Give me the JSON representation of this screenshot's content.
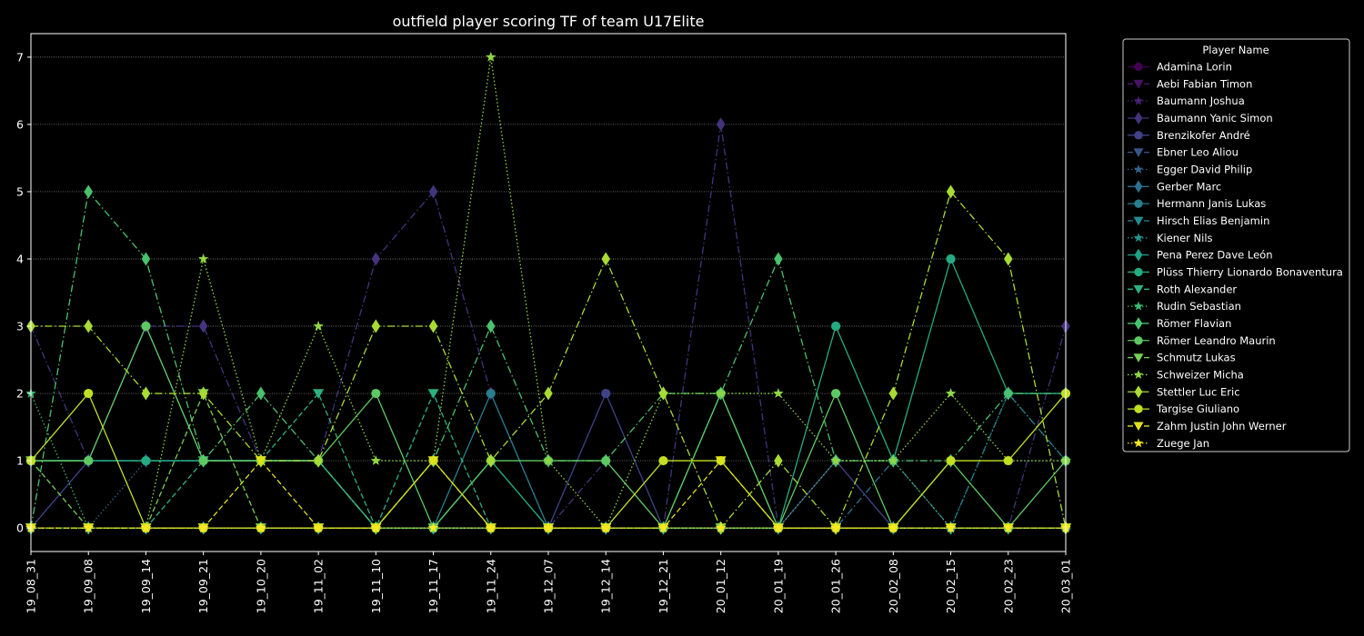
{
  "chart_data": {
    "type": "line",
    "title": "outfield player scoring TF of team U17Elite",
    "xlabel": "",
    "ylabel": "",
    "categories": [
      "19_08_31",
      "19_09_08",
      "19_09_14",
      "19_09_21",
      "19_10_20",
      "19_11_02",
      "19_11_10",
      "19_11_17",
      "19_11_24",
      "19_12_07",
      "19_12_14",
      "19_12_21",
      "20_01_12",
      "20_01_19",
      "20_01_26",
      "20_02_08",
      "20_02_15",
      "20_02_23",
      "20_03_01"
    ],
    "ylim": [
      -0.35,
      7.35
    ],
    "yticks": [
      0,
      1,
      2,
      3,
      4,
      5,
      6,
      7
    ],
    "grid": "horizontal-dotted",
    "legend": {
      "title": "Player Name",
      "placement": "outside-right"
    },
    "series": [
      {
        "name": "Adamina Lorin",
        "color": "#440154",
        "marker": "circle",
        "dash": "solid",
        "values": [
          0,
          0,
          0,
          0,
          0,
          0,
          0,
          0,
          0,
          0,
          0,
          0,
          0,
          0,
          0,
          0,
          0,
          0,
          0
        ]
      },
      {
        "name": "Aebi Fabian Timon",
        "color": "#471365",
        "marker": "triangle-down",
        "dash": "dashed",
        "values": [
          0,
          0,
          0,
          0,
          0,
          0,
          0,
          0,
          0,
          0,
          0,
          0,
          0,
          0,
          0,
          0,
          0,
          0,
          0
        ]
      },
      {
        "name": "Baumann Joshua",
        "color": "#482475",
        "marker": "star",
        "dash": "dotted",
        "values": [
          0,
          0,
          0,
          0,
          0,
          0,
          0,
          0,
          0,
          0,
          0,
          0,
          0,
          0,
          0,
          0,
          0,
          0,
          0
        ]
      },
      {
        "name": "Baumann Yanic Simon",
        "color": "#45337d",
        "marker": "diamond",
        "dash": "dashdot",
        "values": [
          3,
          1,
          3,
          3,
          1,
          1,
          4,
          5,
          2,
          0,
          1,
          0,
          6,
          0,
          0,
          0,
          0,
          0,
          3
        ]
      },
      {
        "name": "Brenzikofer André",
        "color": "#404387",
        "marker": "circle",
        "dash": "solid",
        "values": [
          0,
          1,
          3,
          1,
          1,
          1,
          0,
          0,
          0,
          0,
          2,
          0,
          0,
          0,
          1,
          0,
          0,
          0,
          0
        ]
      },
      {
        "name": "Ebner Leo Aliou",
        "color": "#39558c",
        "marker": "triangle-down",
        "dash": "dashed",
        "values": [
          0,
          0,
          0,
          0,
          0,
          0,
          0,
          0,
          0,
          0,
          0,
          0,
          0,
          0,
          0,
          0,
          0,
          0,
          0
        ]
      },
      {
        "name": "Egger David Philip",
        "color": "#33638d",
        "marker": "star",
        "dash": "dotted",
        "values": [
          0,
          0,
          1,
          1,
          1,
          1,
          0,
          0,
          0,
          0,
          0,
          0,
          0,
          0,
          0,
          0,
          0,
          0,
          0
        ]
      },
      {
        "name": "Gerber Marc",
        "color": "#2d708e",
        "marker": "diamond",
        "dash": "dashdot",
        "values": [
          1,
          1,
          1,
          1,
          1,
          1,
          0,
          0,
          1,
          0,
          0,
          0,
          0,
          0,
          0,
          1,
          0,
          2,
          1
        ]
      },
      {
        "name": "Hermann Janis Lukas",
        "color": "#287d8e",
        "marker": "circle",
        "dash": "solid",
        "values": [
          1,
          1,
          1,
          1,
          1,
          1,
          0,
          0,
          2,
          0,
          0,
          0,
          0,
          0,
          0,
          0,
          0,
          0,
          0
        ]
      },
      {
        "name": "Hirsch Elias Benjamin",
        "color": "#238a8d",
        "marker": "triangle-down",
        "dash": "dashed",
        "values": [
          0,
          0,
          0,
          0,
          0,
          0,
          0,
          0,
          0,
          0,
          0,
          0,
          0,
          0,
          0,
          0,
          0,
          0,
          0
        ]
      },
      {
        "name": "Kiener Nils",
        "color": "#1f968b",
        "marker": "star",
        "dash": "dotted",
        "values": [
          0,
          0,
          0,
          0,
          0,
          0,
          0,
          0,
          0,
          0,
          0,
          0,
          0,
          0,
          0,
          0,
          0,
          2,
          1
        ]
      },
      {
        "name": "Pena Perez Dave León",
        "color": "#1fa188",
        "marker": "diamond",
        "dash": "dashdot",
        "values": [
          0,
          0,
          0,
          0,
          0,
          0,
          0,
          0,
          0,
          0,
          0,
          0,
          0,
          0,
          0,
          0,
          0,
          0,
          0
        ]
      },
      {
        "name": "Plüss Thierry Lionardo Bonaventura",
        "color": "#25ab82",
        "marker": "circle",
        "dash": "solid",
        "values": [
          1,
          1,
          1,
          1,
          1,
          1,
          0,
          0,
          1,
          0,
          0,
          0,
          2,
          0,
          3,
          1,
          4,
          2,
          2
        ]
      },
      {
        "name": "Roth Alexander",
        "color": "#2cb17e",
        "marker": "triangle-down",
        "dash": "dashed",
        "values": [
          0,
          0,
          0,
          1,
          1,
          2,
          0,
          2,
          0,
          0,
          0,
          0,
          0,
          0,
          0,
          0,
          0,
          0,
          0
        ]
      },
      {
        "name": "Rudin Sebastian",
        "color": "#3bbb75",
        "marker": "star",
        "dash": "dotted",
        "values": [
          2,
          0,
          0,
          0,
          0,
          0,
          0,
          0,
          0,
          0,
          0,
          0,
          0,
          0,
          1,
          1,
          0,
          0,
          0
        ]
      },
      {
        "name": "Römer Flavian",
        "color": "#4ac16d",
        "marker": "diamond",
        "dash": "dashdot",
        "values": [
          0,
          5,
          4,
          1,
          2,
          1,
          0,
          1,
          3,
          1,
          1,
          2,
          2,
          4,
          1,
          1,
          1,
          2,
          2
        ]
      },
      {
        "name": "Römer Leandro Maurin",
        "color": "#5ec962",
        "marker": "circle",
        "dash": "solid",
        "values": [
          1,
          1,
          3,
          1,
          1,
          1,
          2,
          0,
          1,
          1,
          1,
          0,
          2,
          0,
          2,
          0,
          1,
          0,
          1
        ]
      },
      {
        "name": "Schmutz Lukas",
        "color": "#75d054",
        "marker": "triangle-down",
        "dash": "dashed",
        "values": [
          1,
          0,
          0,
          2,
          0,
          0,
          0,
          0,
          0,
          0,
          0,
          0,
          0,
          0,
          0,
          0,
          0,
          0,
          0
        ]
      },
      {
        "name": "Schweizer Micha",
        "color": "#8fd744",
        "marker": "star",
        "dash": "dotted",
        "values": [
          0,
          0,
          0,
          4,
          1,
          3,
          1,
          1,
          7,
          1,
          0,
          2,
          2,
          2,
          1,
          1,
          2,
          1,
          1
        ]
      },
      {
        "name": "Stettler Luc Eric",
        "color": "#a8db34",
        "marker": "diamond",
        "dash": "dashdot",
        "values": [
          3,
          3,
          2,
          2,
          1,
          1,
          3,
          3,
          1,
          2,
          4,
          2,
          0,
          1,
          0,
          2,
          5,
          4,
          0
        ]
      },
      {
        "name": "Targise Giuliano",
        "color": "#c2df23",
        "marker": "circle",
        "dash": "solid",
        "values": [
          1,
          2,
          0,
          0,
          0,
          0,
          0,
          1,
          0,
          0,
          0,
          1,
          1,
          0,
          0,
          0,
          1,
          1,
          2
        ]
      },
      {
        "name": "Zahm Justin John Werner",
        "color": "#dde318",
        "marker": "triangle-down",
        "dash": "dashed",
        "values": [
          0,
          0,
          0,
          0,
          1,
          0,
          0,
          1,
          0,
          0,
          0,
          0,
          1,
          0,
          0,
          0,
          0,
          0,
          0
        ]
      },
      {
        "name": "Zuege Jan",
        "color": "#fde725",
        "marker": "star",
        "dash": "dotted",
        "values": [
          0,
          0,
          0,
          0,
          0,
          0,
          0,
          0,
          0,
          0,
          0,
          0,
          0,
          0,
          0,
          0,
          0,
          0,
          0
        ]
      }
    ]
  }
}
